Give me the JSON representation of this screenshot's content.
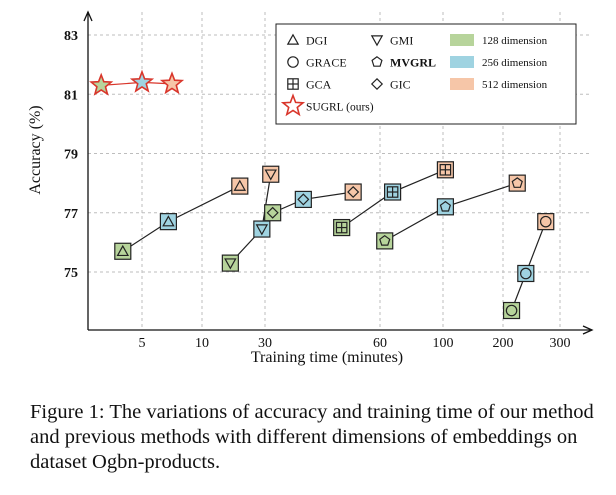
{
  "caption": "Figure 1: The variations of accuracy and training time of our method and previous methods with different dimensions of embeddings on dataset Ogbn-products.",
  "chart_data": {
    "type": "scatter",
    "xlabel": "Training time (minutes)",
    "ylabel": "Accuracy (%)",
    "ylim": [
      73.0,
      84.0
    ],
    "x_scale": "piecewise (segments between tick labels)",
    "x_ticks": [
      "5",
      "10",
      "30",
      "60",
      "100",
      "200",
      "300"
    ],
    "y_ticks": [
      "75",
      "77",
      "79",
      "81",
      "83"
    ],
    "grid": "dashed vertical and horizontal lines at tick positions",
    "legend_placement": "top-right",
    "dimension_colors": [
      {
        "label": "128 dimension",
        "color": "#b7d49b"
      },
      {
        "label": "256 dimension",
        "color": "#9fd3e1"
      },
      {
        "label": "512 dimension",
        "color": "#f6c6a8"
      }
    ],
    "methods": [
      {
        "label": "DGI",
        "marker": "triangle"
      },
      {
        "label": "GRACE",
        "marker": "circle"
      },
      {
        "label": "GCA",
        "marker": "square-cross"
      },
      {
        "label": "SUGRL (ours)",
        "marker": "star"
      },
      {
        "label": "GMI",
        "marker": "triangle-down"
      },
      {
        "label": "MVGRL",
        "marker": "pentagon"
      },
      {
        "label": "GIC",
        "marker": "diamond"
      }
    ],
    "series": [
      {
        "name": "SUGRL (ours)",
        "marker": "star",
        "points": [
          {
            "x": 3.3,
            "y": 81.3,
            "dim": 128
          },
          {
            "x": 5.0,
            "y": 81.4,
            "dim": 256
          },
          {
            "x": 7.5,
            "y": 81.35,
            "dim": 512
          }
        ]
      },
      {
        "name": "DGI",
        "marker": "triangle",
        "points": [
          {
            "x": 4.2,
            "y": 75.7,
            "dim": 128
          },
          {
            "x": 7.2,
            "y": 76.7,
            "dim": 256
          },
          {
            "x": 22,
            "y": 77.9,
            "dim": 512
          }
        ]
      },
      {
        "name": "GMI",
        "marker": "triangle-down",
        "points": [
          {
            "x": 19,
            "y": 75.3,
            "dim": 128
          },
          {
            "x": 29,
            "y": 76.45,
            "dim": 256
          },
          {
            "x": 31.5,
            "y": 78.3,
            "dim": 512
          }
        ]
      },
      {
        "name": "GIC",
        "marker": "diamond",
        "points": [
          {
            "x": 32,
            "y": 77.0,
            "dim": 128
          },
          {
            "x": 40,
            "y": 77.45,
            "dim": 256
          },
          {
            "x": 53,
            "y": 77.7,
            "dim": 512
          }
        ]
      },
      {
        "name": "GCA",
        "marker": "square-cross",
        "points": [
          {
            "x": 50,
            "y": 76.5,
            "dim": 128
          },
          {
            "x": 68,
            "y": 77.7,
            "dim": 256
          },
          {
            "x": 104,
            "y": 78.45,
            "dim": 512
          }
        ]
      },
      {
        "name": "MVGRL",
        "marker": "pentagon",
        "points": [
          {
            "x": 63,
            "y": 76.05,
            "dim": 128
          },
          {
            "x": 104,
            "y": 77.2,
            "dim": 256
          },
          {
            "x": 225,
            "y": 78.0,
            "dim": 512
          }
        ]
      },
      {
        "name": "GRACE",
        "marker": "circle",
        "points": [
          {
            "x": 215,
            "y": 73.7,
            "dim": 128
          },
          {
            "x": 240,
            "y": 74.95,
            "dim": 256
          },
          {
            "x": 275,
            "y": 76.7,
            "dim": 512
          }
        ]
      }
    ]
  }
}
